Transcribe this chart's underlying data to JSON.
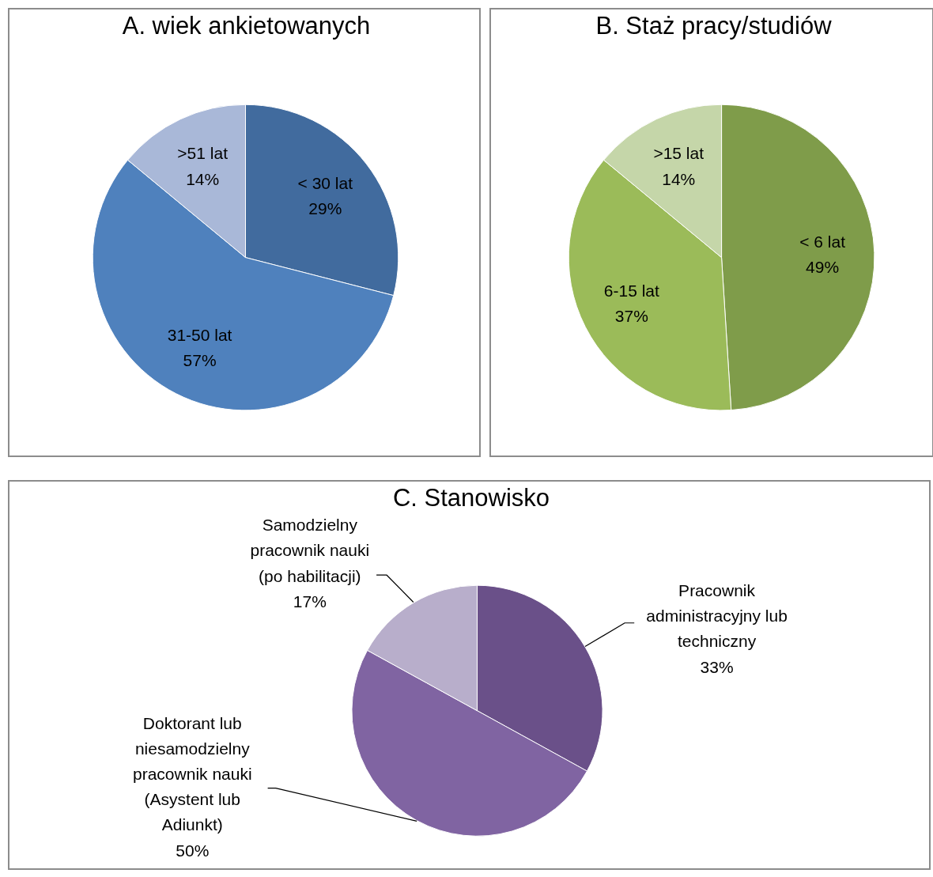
{
  "chart_data": [
    {
      "type": "pie",
      "title": "A. wiek ankietowanych",
      "categories": [
        "< 30 lat",
        "31-50 lat",
        ">51 lat"
      ],
      "values": [
        29,
        57,
        14
      ],
      "colors": [
        "#416b9e",
        "#4f81bd",
        "#a9b8d8"
      ],
      "value_labels": [
        "29%",
        "57%",
        "14%"
      ]
    },
    {
      "type": "pie",
      "title": "B. Staż pracy/studiów",
      "categories": [
        "< 6 lat",
        "6-15 lat",
        ">15 lat"
      ],
      "values": [
        49,
        37,
        14
      ],
      "colors": [
        "#7f9c4a",
        "#9bbb59",
        "#c5d6a9"
      ],
      "value_labels": [
        "49%",
        "37%",
        "14%"
      ]
    },
    {
      "type": "pie",
      "title": "C. Stanowisko",
      "categories": [
        "Pracownik administracyjny lub techniczny",
        "Doktorant lub niesamodzielny pracownik nauki (Asystent lub Adiunkt)",
        "Samodzielny pracownik nauki (po habilitacji)"
      ],
      "values": [
        33,
        50,
        17
      ],
      "colors": [
        "#6a5089",
        "#8064a2",
        "#b8aecb"
      ],
      "value_labels": [
        "33%",
        "50%",
        "17%"
      ]
    }
  ]
}
